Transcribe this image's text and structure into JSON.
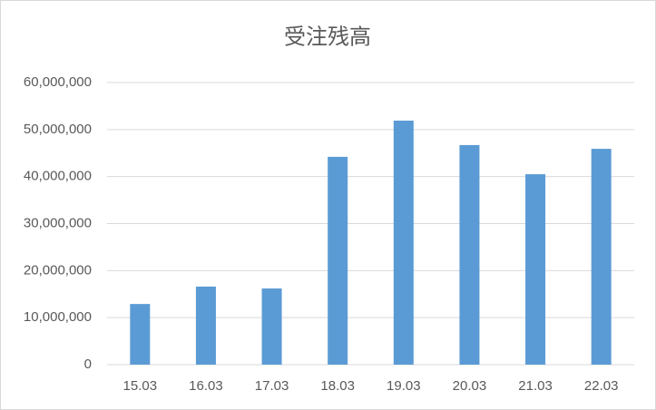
{
  "chart_data": {
    "type": "bar",
    "title": "受注残高",
    "categories": [
      "15.03",
      "16.03",
      "17.03",
      "18.03",
      "19.03",
      "20.03",
      "21.03",
      "22.03"
    ],
    "values": [
      12900000,
      16600000,
      16200000,
      44200000,
      51900000,
      46700000,
      40500000,
      45900000
    ],
    "color": "#5b9bd5",
    "ylim": [
      0,
      60000000
    ],
    "yticks": [
      0,
      {
        "value": 10000000,
        "label": "10,000,000"
      },
      {
        "value": 20000000,
        "label": "20,000,000"
      },
      {
        "value": 30000000,
        "label": "30,000,000"
      },
      {
        "value": 40000000,
        "label": "40,000,000"
      },
      {
        "value": 50000000,
        "label": "50,000,000"
      },
      {
        "value": 60000000,
        "label": "60,000,000"
      }
    ],
    "grid": true
  }
}
